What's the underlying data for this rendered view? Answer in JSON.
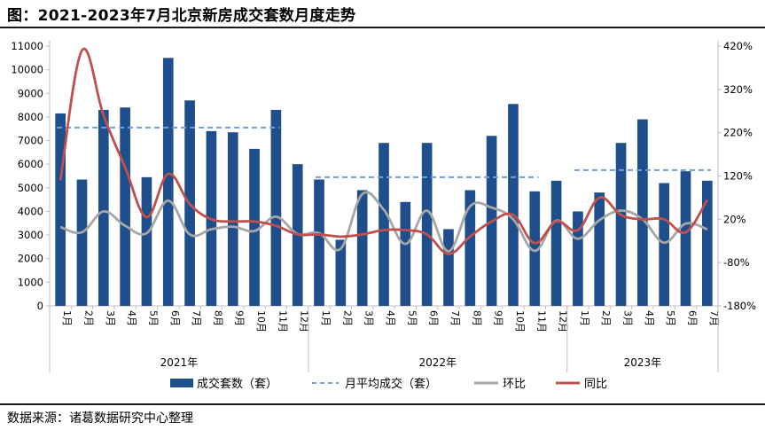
{
  "header": {
    "title": "图：2021-2023年7月北京新房成交套数月度走势",
    "source": "数据来源：诸葛数据研究中心整理"
  },
  "colors": {
    "bar": "#1f4e8c",
    "avg": "#6f9fd8",
    "mom": "#a6a6a6",
    "yoy": "#c0504d",
    "axis": "#bfbfbf"
  },
  "chart_data": {
    "type": "bar",
    "categories": [
      "1月",
      "2月",
      "3月",
      "4月",
      "5月",
      "6月",
      "7月",
      "8月",
      "9月",
      "10月",
      "11月",
      "12月",
      "1月",
      "2月",
      "3月",
      "4月",
      "5月",
      "6月",
      "7月",
      "8月",
      "9月",
      "10月",
      "11月",
      "12月",
      "1月",
      "2月",
      "3月",
      "4月",
      "5月",
      "6月",
      "7月"
    ],
    "groups": [
      {
        "label": "2021年",
        "start": 0,
        "end": 11
      },
      {
        "label": "2022年",
        "start": 12,
        "end": 23
      },
      {
        "label": "2023年",
        "start": 24,
        "end": 30
      }
    ],
    "y_left": {
      "min": 0,
      "max": 11000,
      "step": 1000,
      "ticks": [
        "0",
        "1000",
        "2000",
        "3000",
        "4000",
        "5000",
        "6000",
        "7000",
        "8000",
        "9000",
        "10000",
        "11000"
      ]
    },
    "y_right": {
      "min": -180,
      "max": 420,
      "step": 100,
      "ticks": [
        "-180%",
        "-80%",
        "20%",
        "120%",
        "220%",
        "320%",
        "420%"
      ]
    },
    "series": [
      {
        "name": "成交套数（套）",
        "kind": "bar",
        "axis": "left",
        "values": [
          8150,
          5350,
          8300,
          8400,
          5450,
          10500,
          8700,
          7400,
          7350,
          6650,
          8300,
          6000,
          5350,
          2800,
          4900,
          6900,
          4400,
          6900,
          3250,
          4900,
          7200,
          8550,
          4850,
          5300,
          4000,
          4800,
          6900,
          7900,
          5200,
          5700,
          5300
        ]
      },
      {
        "name": "月平均成交（套）",
        "kind": "avg",
        "axis": "left",
        "segments": [
          {
            "start": 0,
            "end": 10,
            "value": 7550
          },
          {
            "start": 12,
            "end": 22,
            "value": 5450
          },
          {
            "start": 24,
            "end": 30,
            "value": 5750
          }
        ]
      },
      {
        "name": "环比",
        "kind": "line",
        "axis": "right",
        "values": [
          2,
          -10,
          38,
          5,
          -12,
          63,
          -15,
          -3,
          3,
          -7,
          26,
          -14,
          -12,
          -48,
          78,
          42,
          -37,
          40,
          -54,
          50,
          47,
          20,
          -53,
          17,
          -25,
          18,
          40,
          20,
          -34,
          10,
          -3
        ]
      },
      {
        "name": "同比",
        "kind": "line",
        "axis": "right",
        "values": [
          110,
          410,
          260,
          140,
          25,
          125,
          55,
          20,
          15,
          15,
          5,
          -15,
          -15,
          -20,
          -15,
          -5,
          -5,
          -15,
          -60,
          -20,
          15,
          30,
          -35,
          15,
          -5,
          70,
          30,
          20,
          20,
          -10,
          65
        ]
      }
    ],
    "legend": {
      "position": "bottom",
      "items": [
        "成交套数（套）",
        "月平均成交（套）",
        "环比",
        "同比"
      ]
    },
    "grid": false
  }
}
